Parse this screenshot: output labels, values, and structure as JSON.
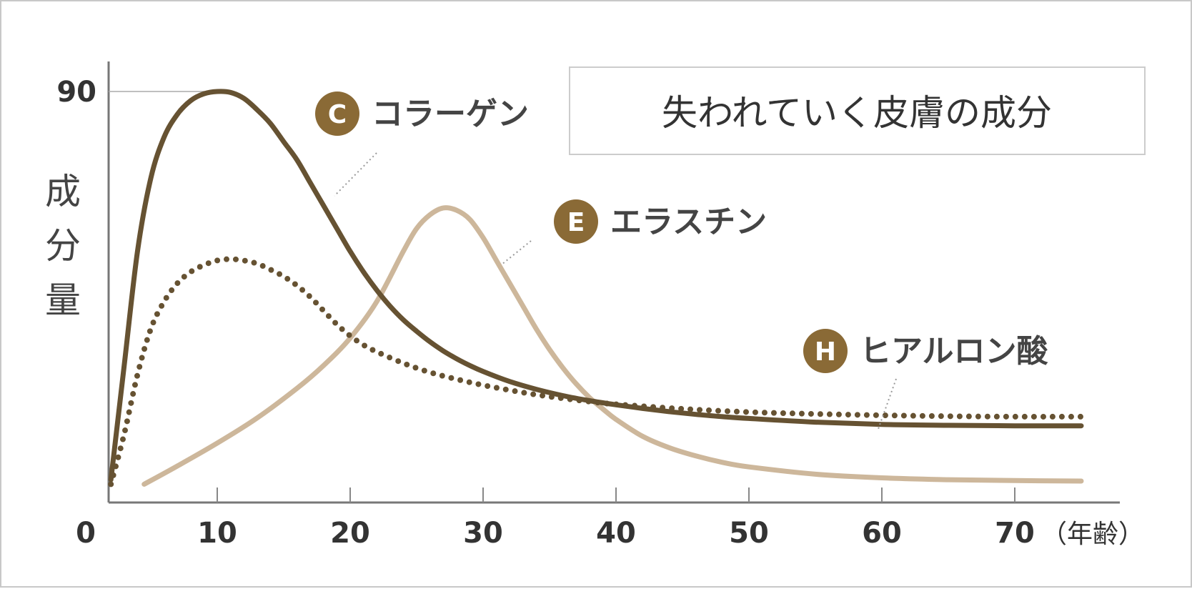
{
  "chart_data": {
    "type": "line",
    "title": "失われていく皮膚の成分",
    "ylabel": "成分量",
    "xunit": "（年齢）",
    "xlim": [
      0,
      75
    ],
    "ylim": [
      0,
      90
    ],
    "x_ticks": [
      0,
      10,
      20,
      30,
      40,
      50,
      60,
      70
    ],
    "y_ticks": [
      90
    ],
    "grid": false,
    "series": [
      {
        "name": "コラーゲン",
        "badge": "C",
        "style": "solid",
        "color": "#665232",
        "points": [
          [
            2,
            5
          ],
          [
            3,
            30
          ],
          [
            4,
            55
          ],
          [
            5,
            71
          ],
          [
            6,
            80
          ],
          [
            7,
            85
          ],
          [
            8,
            88
          ],
          [
            9,
            89.5
          ],
          [
            10,
            90
          ],
          [
            11,
            89.8
          ],
          [
            12,
            88.5
          ],
          [
            13,
            86
          ],
          [
            14,
            83
          ],
          [
            15,
            79
          ],
          [
            16,
            75
          ],
          [
            17,
            70
          ],
          [
            18,
            65
          ],
          [
            19,
            60
          ],
          [
            20,
            55
          ],
          [
            21,
            50.5
          ],
          [
            22,
            46.5
          ],
          [
            23,
            43
          ],
          [
            24,
            40
          ],
          [
            25,
            37.5
          ],
          [
            26,
            35.2
          ],
          [
            27,
            33.2
          ],
          [
            28,
            31.5
          ],
          [
            29,
            30
          ],
          [
            30,
            28.7
          ],
          [
            32,
            26.5
          ],
          [
            34,
            24.8
          ],
          [
            36,
            23.4
          ],
          [
            38,
            22.3
          ],
          [
            40,
            21.4
          ],
          [
            42,
            20.6
          ],
          [
            44,
            19.9
          ],
          [
            46,
            19.3
          ],
          [
            48,
            18.8
          ],
          [
            50,
            18.4
          ],
          [
            55,
            17.6
          ],
          [
            60,
            17.1
          ],
          [
            65,
            16.9
          ],
          [
            70,
            16.8
          ],
          [
            75,
            16.8
          ]
        ]
      },
      {
        "name": "エラスチン",
        "badge": "E",
        "style": "solid",
        "color": "#cdb79b",
        "points": [
          [
            4.5,
            4
          ],
          [
            7,
            8
          ],
          [
            10,
            13
          ],
          [
            13,
            18.5
          ],
          [
            16,
            25
          ],
          [
            18,
            30
          ],
          [
            20,
            36
          ],
          [
            22,
            44
          ],
          [
            24,
            55
          ],
          [
            25,
            60
          ],
          [
            26,
            63
          ],
          [
            27,
            64.5
          ],
          [
            28,
            64
          ],
          [
            29,
            62
          ],
          [
            30,
            58
          ],
          [
            31,
            53
          ],
          [
            32,
            48
          ],
          [
            33,
            43
          ],
          [
            34,
            38
          ],
          [
            35,
            33.5
          ],
          [
            36,
            29.5
          ],
          [
            37,
            26
          ],
          [
            38,
            23
          ],
          [
            39,
            20.5
          ],
          [
            40,
            18.2
          ],
          [
            42,
            14.5
          ],
          [
            44,
            12
          ],
          [
            46,
            10.2
          ],
          [
            48,
            8.8
          ],
          [
            50,
            7.8
          ],
          [
            55,
            6.2
          ],
          [
            60,
            5.4
          ],
          [
            65,
            5.0
          ],
          [
            70,
            4.8
          ],
          [
            75,
            4.7
          ]
        ]
      },
      {
        "name": "ヒアルロン酸",
        "badge": "H",
        "style": "dotted",
        "color": "#665232",
        "points": [
          [
            2,
            4
          ],
          [
            3,
            15
          ],
          [
            4,
            28
          ],
          [
            5,
            38
          ],
          [
            6,
            44
          ],
          [
            7,
            48
          ],
          [
            8,
            50.5
          ],
          [
            9,
            52
          ],
          [
            10,
            53
          ],
          [
            11,
            53.3
          ],
          [
            12,
            53
          ],
          [
            13,
            52.3
          ],
          [
            14,
            51
          ],
          [
            15,
            49.5
          ],
          [
            16,
            47.5
          ],
          [
            17,
            45
          ],
          [
            18,
            42
          ],
          [
            19,
            39
          ],
          [
            20,
            36.5
          ],
          [
            21,
            34.5
          ],
          [
            22,
            33
          ],
          [
            24,
            30.5
          ],
          [
            26,
            28.5
          ],
          [
            28,
            27
          ],
          [
            30,
            25.7
          ],
          [
            32,
            24.6
          ],
          [
            34,
            23.6
          ],
          [
            36,
            22.8
          ],
          [
            38,
            22.1
          ],
          [
            40,
            21.5
          ],
          [
            45,
            20.5
          ],
          [
            50,
            19.8
          ],
          [
            55,
            19.4
          ],
          [
            60,
            19.1
          ],
          [
            65,
            18.9
          ],
          [
            70,
            18.8
          ],
          [
            75,
            18.8
          ]
        ]
      }
    ]
  }
}
